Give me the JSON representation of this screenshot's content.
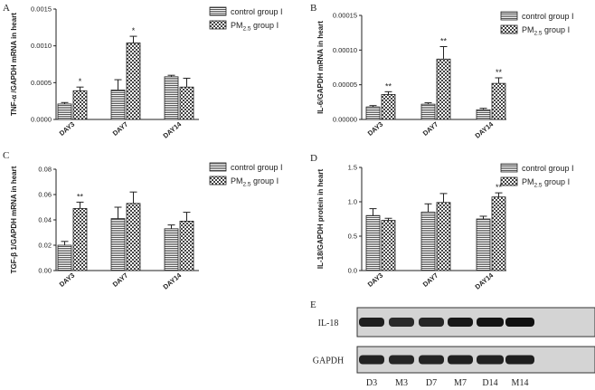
{
  "chart_data": [
    {
      "panel": "A",
      "type": "bar",
      "ylabel": "TNF-α /GAPDH mRNA in heart",
      "categories": [
        "DAY3",
        "DAY7",
        "DAY14"
      ],
      "ylim": [
        0,
        0.0015
      ],
      "yticks": [
        "0.0000",
        "0.0005",
        "0.0010",
        "0.0015"
      ],
      "series": [
        {
          "name": "control group I",
          "values": [
            0.00021,
            0.0004,
            0.00058
          ],
          "errors": [
            2e-05,
            0.00014,
            2e-05
          ]
        },
        {
          "name": "PM2.5 group I",
          "values": [
            0.00039,
            0.00104,
            0.00044
          ],
          "errors": [
            5e-05,
            9e-05,
            0.00012
          ]
        }
      ],
      "significance": [
        "*",
        "*",
        ""
      ],
      "legend": "top-right"
    },
    {
      "panel": "B",
      "type": "bar",
      "ylabel": "IL-6/GAPDH mRNA in heart",
      "categories": [
        "DAY3",
        "DAY7",
        "DAY14"
      ],
      "ylim": [
        0,
        0.00015
      ],
      "yticks": [
        "0.00000",
        "0.00005",
        "0.00010",
        "0.00015"
      ],
      "series": [
        {
          "name": "control group I",
          "values": [
            1.8e-05,
            2.2e-05,
            1.4e-05
          ],
          "errors": [
            2e-06,
            2e-06,
            2e-06
          ]
        },
        {
          "name": "PM2.5 group I",
          "values": [
            3.6e-05,
            8.7e-05,
            5.2e-05
          ],
          "errors": [
            4e-06,
            1.8e-05,
            8e-06
          ]
        }
      ],
      "significance": [
        "**",
        "**",
        "**"
      ],
      "legend": "top-right"
    },
    {
      "panel": "C",
      "type": "bar",
      "ylabel": "TGF-β 1/GAPDH mRNA in heart",
      "categories": [
        "DAY3",
        "DAY7",
        "DAY14"
      ],
      "ylim": [
        0,
        0.08
      ],
      "yticks": [
        "0.00",
        "0.02",
        "0.04",
        "0.06",
        "0.08"
      ],
      "series": [
        {
          "name": "control group I",
          "values": [
            0.02,
            0.041,
            0.033
          ],
          "errors": [
            0.003,
            0.009,
            0.003
          ]
        },
        {
          "name": "PM2.5 group I",
          "values": [
            0.049,
            0.053,
            0.039
          ],
          "errors": [
            0.005,
            0.009,
            0.007
          ]
        }
      ],
      "significance": [
        "**",
        "",
        ""
      ],
      "legend": "top-right"
    },
    {
      "panel": "D",
      "type": "bar",
      "ylabel": "IL-18/GAPDH protein in heart",
      "categories": [
        "DAY3",
        "DAY7",
        "DAY14"
      ],
      "ylim": [
        0,
        1.5
      ],
      "yticks": [
        "0.0",
        "0.5",
        "1.0",
        "1.5"
      ],
      "series": [
        {
          "name": "control group I",
          "values": [
            0.8,
            0.85,
            0.75
          ],
          "errors": [
            0.1,
            0.12,
            0.04
          ]
        },
        {
          "name": "PM2.5 group I",
          "values": [
            0.73,
            0.99,
            1.07
          ],
          "errors": [
            0.03,
            0.13,
            0.06
          ]
        }
      ],
      "significance": [
        "",
        "",
        "**"
      ],
      "legend": "top-right"
    }
  ],
  "legend_text": {
    "control": "control group I",
    "pm_prefix": "PM",
    "pm_sub": "2.5",
    "pm_suffix": " group  I"
  },
  "western_blot": {
    "panel": "E",
    "rows": [
      "IL-18",
      "GAPDH"
    ],
    "lanes": [
      "D3",
      "M3",
      "D7",
      "M7",
      "D14",
      "M14"
    ]
  }
}
